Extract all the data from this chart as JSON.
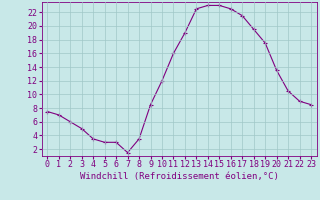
{
  "x": [
    0,
    1,
    2,
    3,
    4,
    5,
    6,
    7,
    8,
    9,
    10,
    11,
    12,
    13,
    14,
    15,
    16,
    17,
    18,
    19,
    20,
    21,
    22,
    23
  ],
  "y": [
    7.5,
    7.0,
    6.0,
    5.0,
    3.5,
    3.0,
    3.0,
    1.5,
    3.5,
    8.5,
    12.0,
    16.0,
    19.0,
    22.5,
    23.0,
    23.0,
    22.5,
    21.5,
    19.5,
    17.5,
    13.5,
    10.5,
    9.0,
    8.5
  ],
  "xlabel": "Windchill (Refroidissement éolien,°C)",
  "xlim": [
    -0.5,
    23.5
  ],
  "ylim": [
    1,
    23.5
  ],
  "yticks": [
    2,
    4,
    6,
    8,
    10,
    12,
    14,
    16,
    18,
    20,
    22
  ],
  "xticks": [
    0,
    1,
    2,
    3,
    4,
    5,
    6,
    7,
    8,
    9,
    10,
    11,
    12,
    13,
    14,
    15,
    16,
    17,
    18,
    19,
    20,
    21,
    22,
    23
  ],
  "line_color": "#800080",
  "marker": "+",
  "bg_color": "#c8e8e8",
  "grid_color": "#a0c8c8",
  "label_color": "#800080",
  "tick_font_size": 6.0,
  "xlabel_font_size": 6.5,
  "linewidth": 0.8,
  "markersize": 3.5,
  "markeredgewidth": 0.8
}
